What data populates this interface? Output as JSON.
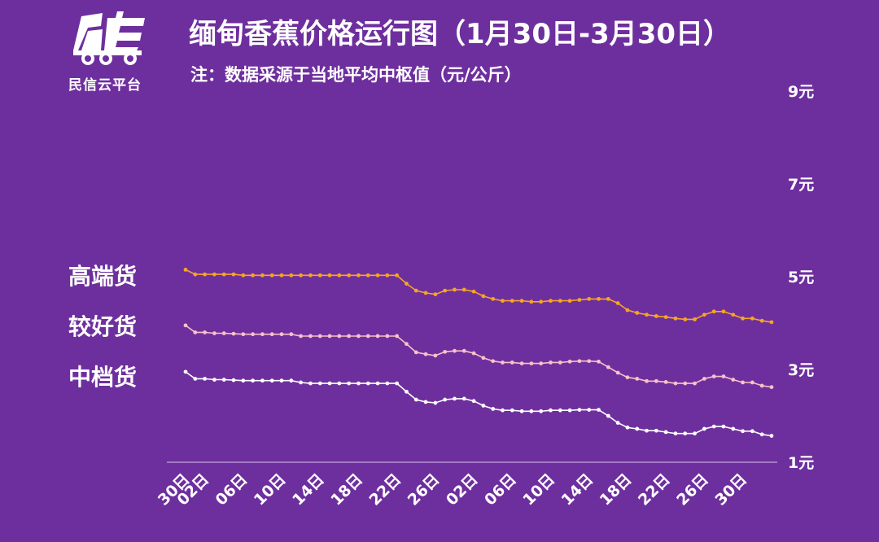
{
  "header": {
    "logo_text": "民信云平台",
    "title": "缅甸香蕉价格运行图（1月30日-3月30日）",
    "subtitle": "注：数据采源于当地平均中枢值（元/公斤）"
  },
  "colors": {
    "background": "#6e2f9e",
    "high": "#f5a623",
    "mid": "#f7c2c8",
    "low": "#ffffff"
  },
  "chart_data": {
    "type": "line",
    "title": "缅甸香蕉价格运行图（1月30日-3月30日）",
    "subtitle": "注：数据采源于当地平均中枢值（元/公斤）",
    "xlabel": "",
    "ylabel": "",
    "y_range": [
      1,
      9
    ],
    "y_ticks": [
      "9元",
      "7元",
      "5元",
      "3元",
      "1元"
    ],
    "y_tick_values": [
      9,
      7,
      5,
      3,
      1
    ],
    "x_tick_labels": [
      "30日",
      "02日",
      "06日",
      "10日",
      "14日",
      "18日",
      "22日",
      "26日",
      "02日",
      "06日",
      "10日",
      "14日",
      "18日",
      "22日",
      "26日",
      "30日"
    ],
    "x_tick_indices": [
      0,
      2,
      6,
      10,
      14,
      18,
      22,
      26,
      30,
      34,
      38,
      42,
      46,
      50,
      54,
      58
    ],
    "grid": false,
    "legend": "left",
    "series": [
      {
        "name": "高端货",
        "color": "#f5a623",
        "values": [
          5.15,
          5.05,
          5.05,
          5.05,
          5.05,
          5.05,
          5.03,
          5.03,
          5.03,
          5.03,
          5.03,
          5.03,
          5.03,
          5.03,
          5.03,
          5.03,
          5.03,
          5.03,
          5.03,
          5.03,
          5.03,
          5.03,
          5.03,
          4.85,
          4.7,
          4.65,
          4.62,
          4.7,
          4.72,
          4.72,
          4.68,
          4.58,
          4.52,
          4.48,
          4.48,
          4.48,
          4.46,
          4.46,
          4.48,
          4.48,
          4.48,
          4.5,
          4.52,
          4.52,
          4.52,
          4.43,
          4.28,
          4.22,
          4.18,
          4.15,
          4.13,
          4.1,
          4.08,
          4.08,
          4.18,
          4.25,
          4.25,
          4.18,
          4.1,
          4.1,
          4.05,
          4.02
        ]
      },
      {
        "name": "较好货",
        "color": "#f7c2c8",
        "values": [
          3.95,
          3.8,
          3.8,
          3.78,
          3.78,
          3.77,
          3.76,
          3.76,
          3.76,
          3.76,
          3.76,
          3.76,
          3.72,
          3.72,
          3.72,
          3.72,
          3.72,
          3.72,
          3.72,
          3.72,
          3.72,
          3.72,
          3.72,
          3.55,
          3.37,
          3.33,
          3.3,
          3.38,
          3.4,
          3.4,
          3.35,
          3.25,
          3.18,
          3.15,
          3.15,
          3.13,
          3.13,
          3.13,
          3.15,
          3.15,
          3.17,
          3.18,
          3.18,
          3.17,
          3.05,
          2.93,
          2.83,
          2.8,
          2.75,
          2.75,
          2.73,
          2.7,
          2.7,
          2.7,
          2.8,
          2.85,
          2.85,
          2.78,
          2.72,
          2.72,
          2.65,
          2.62
        ]
      },
      {
        "name": "中档货",
        "color": "#ffffff",
        "values": [
          2.95,
          2.8,
          2.8,
          2.78,
          2.78,
          2.77,
          2.76,
          2.76,
          2.76,
          2.76,
          2.76,
          2.76,
          2.72,
          2.7,
          2.7,
          2.7,
          2.7,
          2.7,
          2.7,
          2.7,
          2.7,
          2.7,
          2.7,
          2.52,
          2.35,
          2.3,
          2.28,
          2.35,
          2.37,
          2.37,
          2.32,
          2.22,
          2.15,
          2.12,
          2.12,
          2.1,
          2.1,
          2.1,
          2.12,
          2.12,
          2.12,
          2.13,
          2.13,
          2.13,
          2.0,
          1.85,
          1.75,
          1.72,
          1.68,
          1.68,
          1.65,
          1.62,
          1.62,
          1.62,
          1.72,
          1.77,
          1.77,
          1.72,
          1.67,
          1.67,
          1.6,
          1.57
        ]
      }
    ]
  }
}
